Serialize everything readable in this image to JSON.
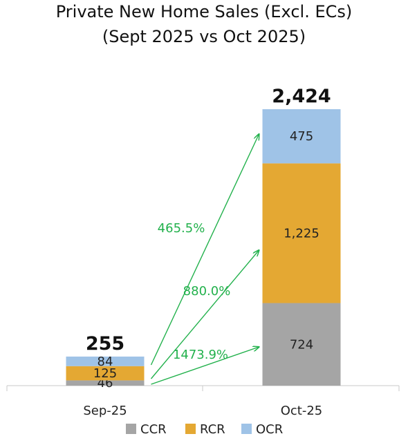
{
  "chart_data": {
    "type": "bar",
    "stacked": true,
    "title": "Private New Home Sales (Excl. ECs)",
    "subtitle": "(Sept 2025 vs Oct 2025)",
    "categories": [
      "Sep-25",
      "Oct-25"
    ],
    "series": [
      {
        "name": "CCR",
        "values": [
          46,
          724
        ],
        "labels": [
          "46",
          "724"
        ],
        "color": "#a5a5a5"
      },
      {
        "name": "RCR",
        "values": [
          125,
          1225
        ],
        "labels": [
          "125",
          "1,225"
        ],
        "color": "#e4a833"
      },
      {
        "name": "OCR",
        "values": [
          84,
          475
        ],
        "labels": [
          "84",
          "475"
        ],
        "color": "#9fc3e7"
      }
    ],
    "totals": [
      255,
      2424
    ],
    "total_labels": [
      "255",
      "2,424"
    ],
    "growth": [
      {
        "series": "CCR",
        "label": "1473.9%"
      },
      {
        "series": "RCR",
        "label": "880.0%"
      },
      {
        "series": "OCR",
        "label": "465.5%"
      }
    ],
    "growth_color": "#22b14c",
    "ylim": [
      0,
      2424
    ],
    "grid": false,
    "legend_position": "bottom"
  }
}
